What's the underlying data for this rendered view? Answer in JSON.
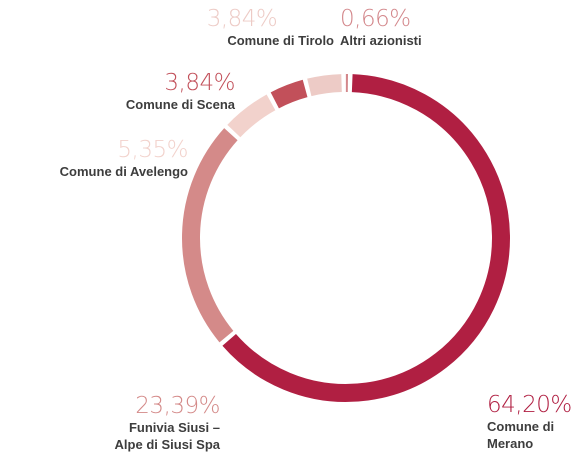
{
  "chart_data": {
    "type": "donut",
    "categories": [
      "Comune di\nMerano",
      "Funivia Siusi –\nAlpe di Siusi Spa",
      "Comune di Avelengo",
      "Comune di Scena",
      "Comune di Tirolo",
      "Altri azionisti"
    ],
    "values": [
      64.2,
      23.39,
      5.35,
      3.84,
      3.84,
      0.66
    ],
    "value_labels": [
      "64,20%",
      "23,39%",
      "5,35%",
      "3,84%",
      "3,84%",
      "0,66%"
    ],
    "colors": [
      "#b01f42",
      "#d48a89",
      "#f2d2cc",
      "#c2505a",
      "#edcbc6",
      "#d3878b"
    ]
  }
}
